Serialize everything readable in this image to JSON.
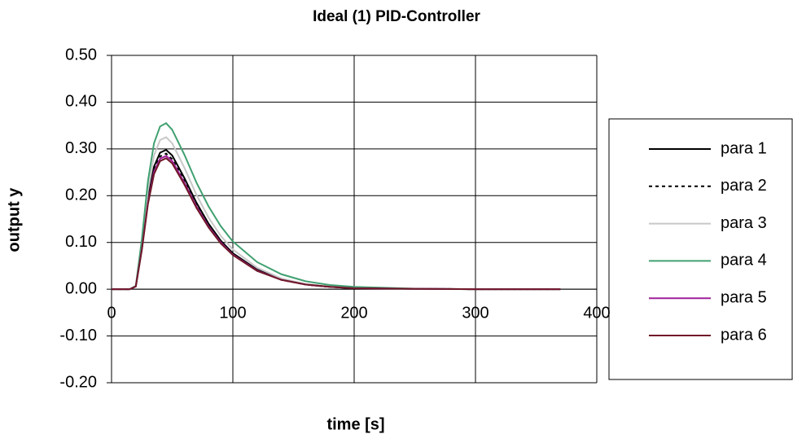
{
  "chart_data": {
    "type": "line",
    "title": "Ideal (1) PID-Controller",
    "x_label": "time [s]",
    "y_label": "output y",
    "x": [
      0,
      15,
      20,
      25,
      30,
      35,
      40,
      45,
      50,
      60,
      70,
      80,
      90,
      100,
      120,
      140,
      160,
      180,
      200,
      250,
      300,
      370
    ],
    "series": [
      {
        "name": "para 1",
        "color": "#000000",
        "values": [
          0,
          0,
          0.006,
          0.089,
          0.194,
          0.262,
          0.292,
          0.298,
          0.286,
          0.238,
          0.185,
          0.14,
          0.104,
          0.077,
          0.042,
          0.021,
          0.01,
          0.005,
          0.002,
          0.001,
          0,
          0
        ]
      },
      {
        "name": "para 2",
        "color": "#000000",
        "dashed": true,
        "values": [
          0,
          0,
          0.006,
          0.087,
          0.189,
          0.255,
          0.284,
          0.29,
          0.278,
          0.232,
          0.18,
          0.136,
          0.102,
          0.075,
          0.041,
          0.02,
          0.01,
          0.005,
          0.002,
          0.001,
          0,
          0
        ]
      },
      {
        "name": "para 3",
        "color": "#c8c8c8",
        "values": [
          0,
          0,
          0.007,
          0.098,
          0.211,
          0.286,
          0.319,
          0.325,
          0.312,
          0.26,
          0.202,
          0.153,
          0.114,
          0.085,
          0.046,
          0.023,
          0.011,
          0.006,
          0.003,
          0.001,
          0,
          0
        ]
      },
      {
        "name": "para 4",
        "color": "#40a070",
        "values": [
          0,
          0,
          0.007,
          0.107,
          0.231,
          0.312,
          0.348,
          0.355,
          0.341,
          0.288,
          0.228,
          0.177,
          0.135,
          0.102,
          0.058,
          0.032,
          0.017,
          0.009,
          0.005,
          0.001,
          0,
          0
        ]
      },
      {
        "name": "para 5",
        "color": "#a0209a",
        "values": [
          0,
          0,
          0.006,
          0.086,
          0.185,
          0.251,
          0.279,
          0.285,
          0.274,
          0.228,
          0.177,
          0.134,
          0.1,
          0.074,
          0.04,
          0.02,
          0.01,
          0.005,
          0.002,
          0.001,
          0,
          0
        ]
      },
      {
        "name": "para 6",
        "color": "#701828",
        "values": [
          0,
          0,
          0.006,
          0.084,
          0.182,
          0.246,
          0.274,
          0.28,
          0.269,
          0.224,
          0.174,
          0.132,
          0.098,
          0.073,
          0.039,
          0.02,
          0.01,
          0.005,
          0.002,
          0.001,
          0,
          0
        ]
      }
    ],
    "xlim": [
      0,
      400
    ],
    "xticks": [
      0,
      100,
      200,
      300,
      400
    ],
    "ylim": [
      -0.2,
      0.5
    ],
    "yticks": [
      {
        "value": 0.5,
        "label": "0.50"
      },
      {
        "value": 0.4,
        "label": "0.40"
      },
      {
        "value": 0.3,
        "label": "0.30"
      },
      {
        "value": 0.2,
        "label": "0.20"
      },
      {
        "value": 0.1,
        "label": "0.10"
      },
      {
        "value": 0,
        "label": "0.00"
      },
      {
        "value": -0.1,
        "label": "-0.10"
      },
      {
        "value": -0.2,
        "label": "-0.20"
      }
    ],
    "grid": true,
    "legend": "right"
  }
}
